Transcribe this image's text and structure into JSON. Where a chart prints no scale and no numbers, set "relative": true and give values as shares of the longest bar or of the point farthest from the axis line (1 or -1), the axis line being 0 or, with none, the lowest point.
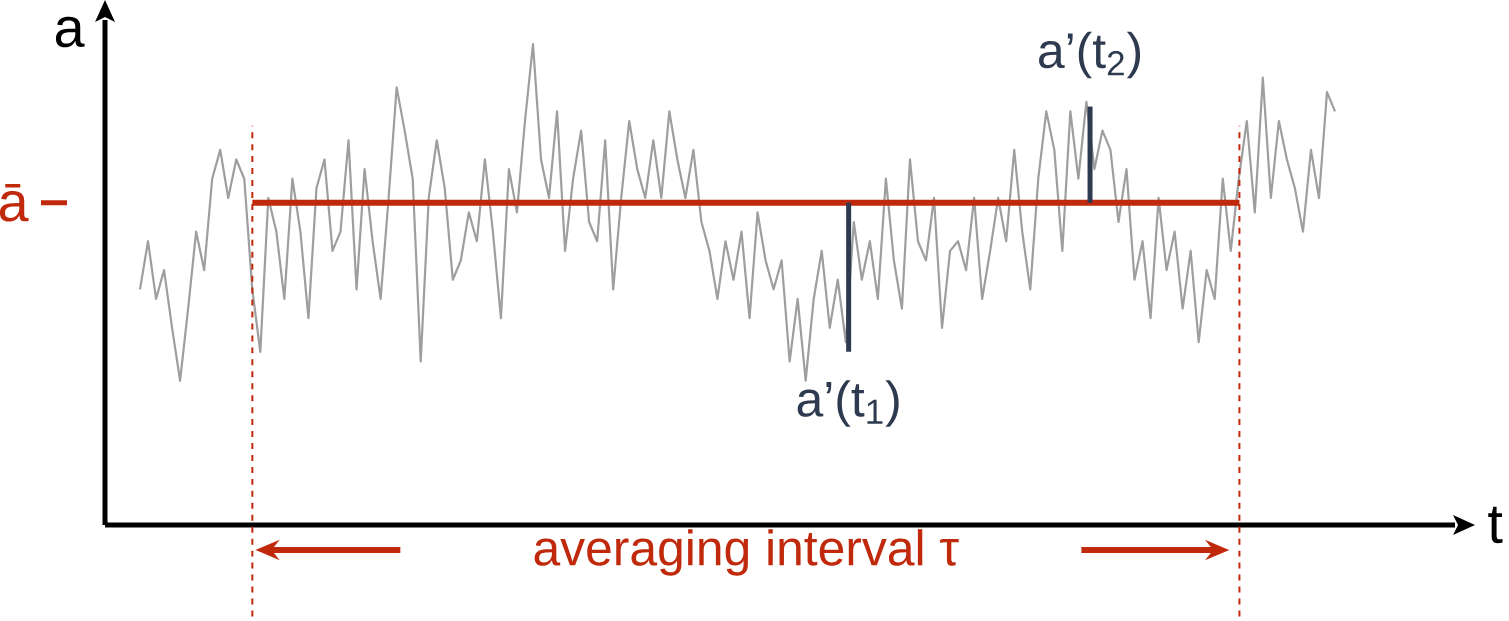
{
  "chart_data": {
    "type": "line",
    "relative": true,
    "xlabel": "t",
    "ylabel": "a",
    "color": "#9e9e9e",
    "categories": [
      null,
      null,
      null,
      null,
      null,
      null,
      null,
      null,
      null,
      null,
      null,
      null,
      null,
      null,
      null,
      null,
      null,
      null,
      null,
      null,
      null,
      null,
      null,
      null,
      null,
      null,
      null,
      null,
      null,
      null,
      null,
      null,
      null,
      null,
      null,
      null,
      null,
      null,
      null,
      null,
      null,
      null,
      null,
      null,
      null,
      null,
      null,
      null,
      null,
      null,
      null,
      null,
      null,
      null,
      null,
      null,
      null,
      null,
      null,
      null,
      null,
      null,
      null,
      null,
      null,
      null,
      null,
      null,
      null,
      null,
      null,
      null,
      null,
      null,
      null,
      null,
      null,
      null,
      null,
      null,
      null,
      null,
      null,
      null,
      null,
      null,
      null,
      null,
      null,
      null,
      null,
      null,
      null,
      null,
      null,
      null,
      null,
      null,
      null,
      null,
      null,
      null,
      null,
      null,
      null,
      null,
      null,
      null,
      null,
      null,
      null,
      null,
      null,
      null,
      null,
      null,
      null,
      null,
      null,
      null,
      null,
      null,
      null,
      null,
      null,
      null,
      null,
      null,
      null,
      null,
      null,
      null,
      null,
      null,
      null,
      null,
      null,
      null,
      null,
      null,
      null,
      null,
      null,
      null,
      null,
      null,
      null,
      null,
      null,
      null
    ],
    "values": [
      0.49,
      0.59,
      0.47,
      0.53,
      0.41,
      0.3,
      0.45,
      0.61,
      0.53,
      0.72,
      0.78,
      0.68,
      0.76,
      0.72,
      0.49,
      0.36,
      0.68,
      0.61,
      0.47,
      0.72,
      0.61,
      0.43,
      0.7,
      0.76,
      0.57,
      0.61,
      0.8,
      0.49,
      0.74,
      0.59,
      0.47,
      0.68,
      0.91,
      0.82,
      0.72,
      0.34,
      0.68,
      0.8,
      0.7,
      0.51,
      0.55,
      0.65,
      0.59,
      0.76,
      0.61,
      0.43,
      0.74,
      0.65,
      0.84,
      1.0,
      0.76,
      0.68,
      0.86,
      0.57,
      0.72,
      0.82,
      0.63,
      0.59,
      0.8,
      0.49,
      0.68,
      0.84,
      0.74,
      0.68,
      0.8,
      0.68,
      0.86,
      0.76,
      0.68,
      0.78,
      0.63,
      0.57,
      0.47,
      0.59,
      0.51,
      0.61,
      0.43,
      0.65,
      0.55,
      0.49,
      0.55,
      0.34,
      0.47,
      0.3,
      0.47,
      0.57,
      0.41,
      0.51,
      0.38,
      0.63,
      0.51,
      0.59,
      0.47,
      0.72,
      0.55,
      0.45,
      0.76,
      0.59,
      0.55,
      0.68,
      0.41,
      0.57,
      0.59,
      0.53,
      0.68,
      0.47,
      0.57,
      0.68,
      0.59,
      0.78,
      0.61,
      0.49,
      0.72,
      0.86,
      0.78,
      0.57,
      0.86,
      0.72,
      0.88,
      0.74,
      0.82,
      0.78,
      0.63,
      0.74,
      0.51,
      0.59,
      0.43,
      0.68,
      0.53,
      0.61,
      0.45,
      0.57,
      0.38,
      0.53,
      0.47,
      0.72,
      0.57,
      0.72,
      0.84,
      0.65,
      0.93,
      0.68,
      0.84,
      0.76,
      0.7,
      0.61,
      0.78,
      0.68,
      0.9,
      0.86
    ],
    "ref_lines": [
      {
        "axis": "y",
        "value": 0.67,
        "label": "ā",
        "color": "#c0290b"
      }
    ],
    "annotations": [
      "a’(t$_{1}$)",
      "a’(t$_{2}$)",
      "averaging interval τ"
    ]
  }
}
